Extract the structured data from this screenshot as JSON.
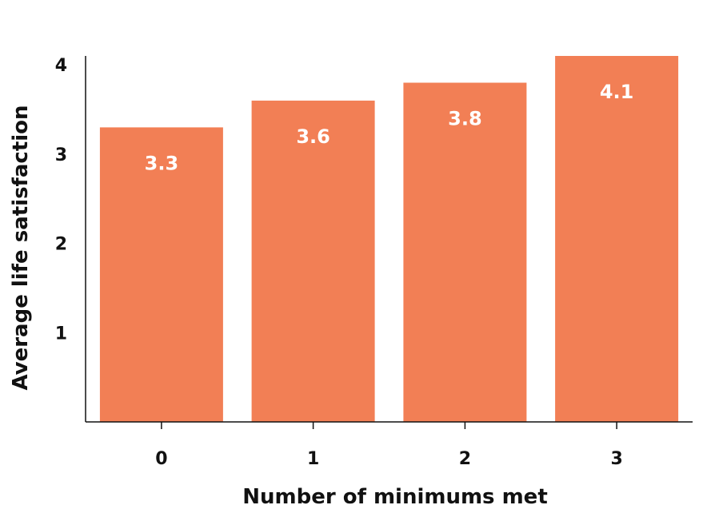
{
  "chart_data": {
    "type": "bar",
    "categories": [
      "0",
      "1",
      "2",
      "3"
    ],
    "values": [
      3.3,
      3.6,
      3.8,
      4.1
    ],
    "data_labels": [
      "3.3",
      "3.6",
      "3.8",
      "4.1"
    ],
    "title": "",
    "xlabel": "Number of minimums met",
    "ylabel": "Average life satisfaction",
    "ylim": [
      0,
      4.1
    ],
    "yticks": [
      "1",
      "2",
      "3",
      "4"
    ],
    "grid": false,
    "legend": "none",
    "colors": {
      "bar": "#f27f55",
      "axis": "#111111",
      "label": "#ffffff"
    }
  }
}
